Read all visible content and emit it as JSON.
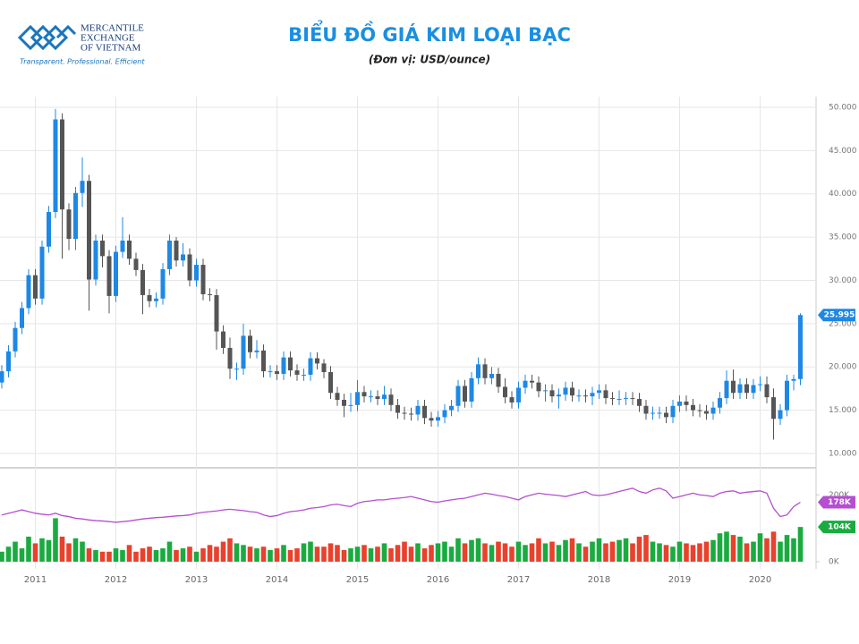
{
  "logo": {
    "line1": "MERCANTILE",
    "line2": "EXCHANGE",
    "line3": "OF VIETNAM",
    "slogan": "Transparent. Professional. Efficient"
  },
  "chart_data": {
    "type": "candlestick",
    "title": "BIỂU ĐỒ GIÁ KIM LOẠI BẠC",
    "subtitle": "(Đơn vị: USD/ounce)",
    "x": [
      "2010-08",
      "2010-09",
      "2010-10",
      "2010-11",
      "2010-12",
      "2011-01",
      "2011-02",
      "2011-03",
      "2011-04",
      "2011-05",
      "2011-06",
      "2011-07",
      "2011-08",
      "2011-09",
      "2011-10",
      "2011-11",
      "2011-12",
      "2012-01",
      "2012-02",
      "2012-03",
      "2012-04",
      "2012-05",
      "2012-06",
      "2012-07",
      "2012-08",
      "2012-09",
      "2012-10",
      "2012-11",
      "2012-12",
      "2013-01",
      "2013-02",
      "2013-03",
      "2013-04",
      "2013-05",
      "2013-06",
      "2013-07",
      "2013-08",
      "2013-09",
      "2013-10",
      "2013-11",
      "2013-12",
      "2014-01",
      "2014-02",
      "2014-03",
      "2014-04",
      "2014-05",
      "2014-06",
      "2014-07",
      "2014-08",
      "2014-09",
      "2014-10",
      "2014-11",
      "2014-12",
      "2015-01",
      "2015-02",
      "2015-03",
      "2015-04",
      "2015-05",
      "2015-06",
      "2015-07",
      "2015-08",
      "2015-09",
      "2015-10",
      "2015-11",
      "2015-12",
      "2016-01",
      "2016-02",
      "2016-03",
      "2016-04",
      "2016-05",
      "2016-06",
      "2016-07",
      "2016-08",
      "2016-09",
      "2016-10",
      "2016-11",
      "2016-12",
      "2017-01",
      "2017-02",
      "2017-03",
      "2017-04",
      "2017-05",
      "2017-06",
      "2017-07",
      "2017-08",
      "2017-09",
      "2017-10",
      "2017-11",
      "2017-12",
      "2018-01",
      "2018-02",
      "2018-03",
      "2018-04",
      "2018-05",
      "2018-06",
      "2018-07",
      "2018-08",
      "2018-09",
      "2018-10",
      "2018-11",
      "2018-12",
      "2019-01",
      "2019-02",
      "2019-03",
      "2019-04",
      "2019-05",
      "2019-06",
      "2019-07",
      "2019-08",
      "2019-09",
      "2019-10",
      "2019-11",
      "2019-12",
      "2020-01",
      "2020-02",
      "2020-03",
      "2020-04",
      "2020-05",
      "2020-06",
      "2020-07"
    ],
    "xticks": [
      {
        "value": "2011-01",
        "label": "2011"
      },
      {
        "value": "2012-01",
        "label": "2012"
      },
      {
        "value": "2013-01",
        "label": "2013"
      },
      {
        "value": "2014-01",
        "label": "2014"
      },
      {
        "value": "2015-01",
        "label": "2015"
      },
      {
        "value": "2016-01",
        "label": "2016"
      },
      {
        "value": "2017-01",
        "label": "2017"
      },
      {
        "value": "2018-01",
        "label": "2018"
      },
      {
        "value": "2019-01",
        "label": "2019"
      },
      {
        "value": "2020-01",
        "label": "2020"
      }
    ],
    "open": [
      18.2,
      19.5,
      21.8,
      24.5,
      26.8,
      30.6,
      27.9,
      33.9,
      37.9,
      48.6,
      38.2,
      34.8,
      40.1,
      41.5,
      30.1,
      34.6,
      32.8,
      28.2,
      33.3,
      34.6,
      32.5,
      31.2,
      28.3,
      27.6,
      27.9,
      31.3,
      34.6,
      32.3,
      33.0,
      30.0,
      31.8,
      28.4,
      28.3,
      24.1,
      22.2,
      19.8,
      19.8,
      23.6,
      21.7,
      21.9,
      19.5,
      19.5,
      19.2,
      21.1,
      19.6,
      19.1,
      19.1,
      21.0,
      20.4,
      19.4,
      17.0,
      16.2,
      15.5,
      15.6,
      17.1,
      16.6,
      16.6,
      16.3,
      16.8,
      15.6,
      14.7,
      14.6,
      14.5,
      15.5,
      14.1,
      13.8,
      14.2,
      15.0,
      15.5,
      17.8,
      16.0,
      18.7,
      20.3,
      18.7,
      19.2,
      17.7,
      16.5,
      15.9,
      17.6,
      18.4,
      18.2,
      17.2,
      17.3,
      16.6,
      16.8,
      17.6,
      16.7,
      16.7,
      16.6,
      17.0,
      17.3,
      16.4,
      16.3,
      16.3,
      16.4,
      16.3,
      15.5,
      14.6,
      14.7,
      14.7,
      14.2,
      15.5,
      16.0,
      15.6,
      15.0,
      14.9,
      14.6,
      15.3,
      16.4,
      18.4,
      17.0,
      18.0,
      17.0,
      17.9,
      18.0,
      16.5,
      14.0,
      15.0,
      18.4,
      18.6
    ],
    "high": [
      20.2,
      22.5,
      25.2,
      27.5,
      31.3,
      31.3,
      34.6,
      38.6,
      49.8,
      49.3,
      38.9,
      40.8,
      44.2,
      42.2,
      35.3,
      35.3,
      33.5,
      34.0,
      37.3,
      35.3,
      33.2,
      31.9,
      29.0,
      28.6,
      32.0,
      35.3,
      35.0,
      34.3,
      33.7,
      32.5,
      32.5,
      29.1,
      29.0,
      24.8,
      23.4,
      20.5,
      25.0,
      24.3,
      23.1,
      22.6,
      20.2,
      20.2,
      21.8,
      21.8,
      20.3,
      19.8,
      21.7,
      21.7,
      20.9,
      20.1,
      17.7,
      16.9,
      17.0,
      18.5,
      17.8,
      17.3,
      17.3,
      17.8,
      17.5,
      16.3,
      15.4,
      15.3,
      16.2,
      16.2,
      14.8,
      14.9,
      15.7,
      16.2,
      18.5,
      18.5,
      19.4,
      21.1,
      21.0,
      20.0,
      19.9,
      18.7,
      17.2,
      18.3,
      19.1,
      19.1,
      18.9,
      18.0,
      18.0,
      17.5,
      18.3,
      18.3,
      17.4,
      17.4,
      17.7,
      18.0,
      18.0,
      17.1,
      17.3,
      17.1,
      17.1,
      17.0,
      16.2,
      15.4,
      15.4,
      15.4,
      16.2,
      16.7,
      16.7,
      16.3,
      15.7,
      15.6,
      16.0,
      17.1,
      19.6,
      19.7,
      18.7,
      18.7,
      18.6,
      18.9,
      18.9,
      17.5,
      15.7,
      19.1,
      19.1,
      26.2
    ],
    "low": [
      17.5,
      18.8,
      21.1,
      23.8,
      26.1,
      27.2,
      27.2,
      33.2,
      37.2,
      32.5,
      33.5,
      33.5,
      38.5,
      26.5,
      29.4,
      31.5,
      26.2,
      27.5,
      32.6,
      31.8,
      30.5,
      26.1,
      26.9,
      26.9,
      27.2,
      30.6,
      31.6,
      31.6,
      29.3,
      29.3,
      27.7,
      27.6,
      22.0,
      21.5,
      18.6,
      18.5,
      19.1,
      21.0,
      21.0,
      18.8,
      18.8,
      18.5,
      18.5,
      18.9,
      18.4,
      18.4,
      18.4,
      19.7,
      18.7,
      16.3,
      15.5,
      14.2,
      14.8,
      14.9,
      15.9,
      15.9,
      15.6,
      15.6,
      14.9,
      14.0,
      13.9,
      13.8,
      13.8,
      13.4,
      13.1,
      13.1,
      13.5,
      14.3,
      14.8,
      15.3,
      15.3,
      18.0,
      18.0,
      18.0,
      17.0,
      15.8,
      15.2,
      15.2,
      16.9,
      17.5,
      16.5,
      16.0,
      15.9,
      15.2,
      16.1,
      16.0,
      16.0,
      15.9,
      15.6,
      16.3,
      15.7,
      15.6,
      15.6,
      15.6,
      15.6,
      14.8,
      13.9,
      13.9,
      14.0,
      13.5,
      13.5,
      14.8,
      14.9,
      14.3,
      14.2,
      13.9,
      13.9,
      14.6,
      15.7,
      16.3,
      16.3,
      16.3,
      16.3,
      17.2,
      15.8,
      11.6,
      13.3,
      14.3,
      17.3,
      17.9
    ],
    "close": [
      19.5,
      21.8,
      24.5,
      26.8,
      30.6,
      27.9,
      33.9,
      37.9,
      48.6,
      38.2,
      34.8,
      40.1,
      41.5,
      30.1,
      34.6,
      32.8,
      28.2,
      33.3,
      34.6,
      32.5,
      31.2,
      28.3,
      27.6,
      27.9,
      31.3,
      34.6,
      32.3,
      33.0,
      30.0,
      31.8,
      28.4,
      28.3,
      24.1,
      22.2,
      19.8,
      19.8,
      23.6,
      21.7,
      21.9,
      19.5,
      19.5,
      19.2,
      21.1,
      19.6,
      19.1,
      19.1,
      21.0,
      20.4,
      19.4,
      17.0,
      16.2,
      15.5,
      15.6,
      17.1,
      16.6,
      16.6,
      16.3,
      16.8,
      15.6,
      14.7,
      14.6,
      14.5,
      15.5,
      14.1,
      13.8,
      14.2,
      15.0,
      15.5,
      17.8,
      16.0,
      18.7,
      20.3,
      18.7,
      19.2,
      17.7,
      16.5,
      15.9,
      17.6,
      18.4,
      18.2,
      17.2,
      17.3,
      16.6,
      16.8,
      17.6,
      16.7,
      16.7,
      16.6,
      17.0,
      17.3,
      16.4,
      16.3,
      16.3,
      16.4,
      16.3,
      15.5,
      14.6,
      14.7,
      14.7,
      14.2,
      15.5,
      16.0,
      15.6,
      15.0,
      14.9,
      14.6,
      15.3,
      16.4,
      18.4,
      17.0,
      18.0,
      17.0,
      17.9,
      18.0,
      16.5,
      14.0,
      15.0,
      18.4,
      18.6,
      25.995
    ],
    "last_label": "25.995",
    "up_color": "#1e88e5",
    "down_color": "#555555",
    "ylim": [
      8.45,
      51.03
    ],
    "yticks": [
      {
        "value": 10,
        "label": "10.000"
      },
      {
        "value": 15,
        "label": "15.000"
      },
      {
        "value": 20,
        "label": "20.000"
      },
      {
        "value": 25,
        "label": "25.000"
      },
      {
        "value": 30,
        "label": "30.000"
      },
      {
        "value": 35,
        "label": "35.000"
      },
      {
        "value": 40,
        "label": "40.000"
      },
      {
        "value": 45,
        "label": "45.000"
      },
      {
        "value": 50,
        "label": "50.000"
      }
    ],
    "grid": true,
    "volume": {
      "type": "bar",
      "up_color": "#1aab40",
      "down_color": "#e8412c",
      "last_label": "104K",
      "ylim": [
        0,
        265
      ],
      "yticks": [
        {
          "value": 0,
          "label": "0K"
        },
        {
          "value": 200,
          "label": "200K"
        }
      ],
      "values": [
        30,
        45,
        60,
        40,
        75,
        55,
        70,
        65,
        130,
        75,
        55,
        70,
        60,
        40,
        35,
        30,
        30,
        40,
        35,
        50,
        30,
        40,
        45,
        35,
        40,
        60,
        35,
        40,
        45,
        30,
        40,
        50,
        45,
        60,
        70,
        55,
        50,
        45,
        40,
        45,
        35,
        40,
        50,
        35,
        40,
        55,
        60,
        45,
        45,
        55,
        50,
        35,
        40,
        45,
        50,
        40,
        45,
        55,
        40,
        50,
        60,
        45,
        55,
        40,
        50,
        55,
        60,
        45,
        70,
        55,
        65,
        70,
        55,
        50,
        60,
        55,
        45,
        60,
        50,
        55,
        70,
        55,
        60,
        50,
        65,
        70,
        55,
        45,
        60,
        70,
        55,
        60,
        65,
        70,
        55,
        75,
        80,
        60,
        55,
        50,
        45,
        60,
        55,
        50,
        55,
        60,
        65,
        85,
        90,
        80,
        75,
        55,
        60,
        85,
        70,
        90,
        60,
        80,
        70,
        104
      ]
    },
    "open_interest": {
      "type": "line",
      "color": "#b44fd0",
      "last_label": "178K",
      "values": [
        140,
        145,
        150,
        155,
        150,
        145,
        142,
        140,
        145,
        138,
        135,
        130,
        128,
        125,
        123,
        122,
        120,
        118,
        120,
        122,
        125,
        128,
        130,
        132,
        133,
        135,
        137,
        138,
        140,
        145,
        148,
        150,
        152,
        155,
        157,
        155,
        153,
        150,
        148,
        140,
        135,
        138,
        145,
        150,
        152,
        155,
        160,
        162,
        165,
        170,
        172,
        168,
        165,
        175,
        180,
        182,
        185,
        185,
        188,
        190,
        192,
        195,
        190,
        185,
        180,
        178,
        182,
        185,
        188,
        190,
        195,
        200,
        205,
        202,
        198,
        195,
        190,
        185,
        195,
        200,
        205,
        202,
        200,
        198,
        195,
        200,
        205,
        210,
        200,
        198,
        200,
        205,
        210,
        215,
        220,
        210,
        205,
        215,
        220,
        212,
        190,
        195,
        200,
        205,
        200,
        198,
        195,
        205,
        210,
        212,
        205,
        208,
        210,
        212,
        205,
        160,
        135,
        140,
        165,
        178
      ]
    }
  }
}
